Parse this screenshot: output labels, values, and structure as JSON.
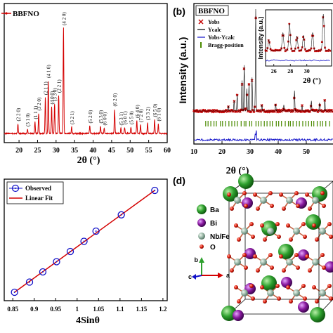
{
  "chart_data": [
    {
      "panel": "a",
      "type": "line",
      "title": "",
      "xlabel": "2θ (°)",
      "ylabel": "",
      "xlim": [
        16,
        60
      ],
      "xticks": [
        20,
        25,
        30,
        35,
        40,
        45,
        50,
        55,
        60
      ],
      "legend": {
        "position": "top-left",
        "entries": [
          "BBFNO"
        ]
      },
      "series": [
        {
          "name": "BBFNO",
          "color": "#d40000",
          "peaks": [
            {
              "x": 19.7,
              "y": 0.09,
              "label": "(2 2 0)"
            },
            {
              "x": 22.3,
              "y": 0.04,
              "label": "(3 1 0)"
            },
            {
              "x": 24.3,
              "y": 0.11,
              "label": "(1 1 1)"
            },
            {
              "x": 25.3,
              "y": 0.19,
              "label": "(3 2 0)"
            },
            {
              "x": 27.1,
              "y": 0.34,
              "label": "(2 1 1)"
            },
            {
              "x": 27.9,
              "y": 0.5,
              "label": "(4 1 0)"
            },
            {
              "x": 28.8,
              "y": 0.25,
              "label": "(4 0 0)"
            },
            {
              "x": 29.6,
              "y": 0.28,
              "label": "(3 3 0)"
            },
            {
              "x": 30.7,
              "y": 0.36,
              "label": "(2 2 1)"
            },
            {
              "x": 32.0,
              "y": 1.0,
              "label": "(4 2 0)"
            },
            {
              "x": 34.2,
              "y": 0.06,
              "label": "(3 2 1)"
            },
            {
              "x": 39.1,
              "y": 0.07,
              "label": "(5 2 0)"
            },
            {
              "x": 42.0,
              "y": 0.07,
              "label": "(5 3 0)"
            },
            {
              "x": 43.0,
              "y": 0.05,
              "label": "(6 0 0)"
            },
            {
              "x": 45.8,
              "y": 0.23,
              "label": "(6 2 0)"
            },
            {
              "x": 47.5,
              "y": 0.05,
              "label": "(5 3 1)"
            },
            {
              "x": 48.5,
              "y": 0.06,
              "label": "(6 0 1)"
            },
            {
              "x": 50.2,
              "y": 0.06,
              "label": "(5 5 0)"
            },
            {
              "x": 51.8,
              "y": 0.12,
              "label": "(6 4 0)"
            },
            {
              "x": 52.8,
              "y": 0.08,
              "label": "(7 2 0)"
            },
            {
              "x": 54.7,
              "y": 0.1,
              "label": "(3 3 2)"
            },
            {
              "x": 56.6,
              "y": 0.13,
              "label": "(6 5 0)"
            },
            {
              "x": 57.6,
              "y": 0.09,
              "label": "(6 1 0)"
            }
          ]
        }
      ]
    },
    {
      "panel": "b",
      "type": "line",
      "title": "",
      "xlabel": "2θ (°)",
      "ylabel": "Intensity (a.u.)",
      "xlim": [
        10,
        60
      ],
      "xticks": [
        10,
        20,
        30,
        40,
        50
      ],
      "sample_label": "BBFNO",
      "legend": {
        "position": "top-left",
        "entries": [
          {
            "name": "Yobs",
            "marker": "x",
            "color": "#c40000"
          },
          {
            "name": "Ycalc",
            "color": "#000000"
          },
          {
            "name": "Yobs-Ycalc",
            "color": "#1010c8"
          },
          {
            "name": "Bragg-position",
            "marker": "|",
            "color": "#4a8a00"
          }
        ]
      },
      "inset": {
        "xlabel": "2θ (°)",
        "ylabel": "Intensity (a.u.)",
        "xlim": [
          25,
          33
        ],
        "xticks": [
          26,
          28,
          30
        ]
      }
    },
    {
      "panel": "c",
      "type": "scatter",
      "title": "",
      "xlabel": "4Sinθ",
      "ylabel": "",
      "xlim": [
        0.83,
        1.21
      ],
      "xticks": [
        0.85,
        0.9,
        0.95,
        1.0,
        1.05,
        1.1,
        1.15,
        1.2
      ],
      "legend": {
        "position": "top-left"
      },
      "series": [
        {
          "name": "Observed",
          "color": "#1010c8",
          "x": [
            0.854,
            0.889,
            0.92,
            0.952,
            0.984,
            1.016,
            1.044,
            1.103,
            1.181
          ],
          "y": [
            0.0,
            1.0,
            2.0,
            3.0,
            4.0,
            5.0,
            6.0,
            7.6,
            10.0
          ]
        },
        {
          "name": "Linear Fit",
          "color": "#d40000",
          "x": [
            0.854,
            1.181
          ],
          "y": [
            0.0,
            10.0
          ]
        }
      ]
    }
  ],
  "panel_d": {
    "label": "(d)",
    "legend": [
      {
        "name": "Ba",
        "color": "#2ea02e"
      },
      {
        "name": "Bi",
        "color": "#8a1aa0"
      },
      {
        "name": "Nb/Fe",
        "color": "#9ab8a8"
      },
      {
        "name": "O",
        "color": "#e02010"
      }
    ],
    "axes": [
      "a",
      "b",
      "c"
    ]
  },
  "panel_labels": {
    "b": "(b)",
    "d": "(d)"
  },
  "colors": {
    "pattern": "#d40000",
    "calc": "#000000",
    "diff": "#1010c8",
    "bragg": "#4a8a00"
  }
}
